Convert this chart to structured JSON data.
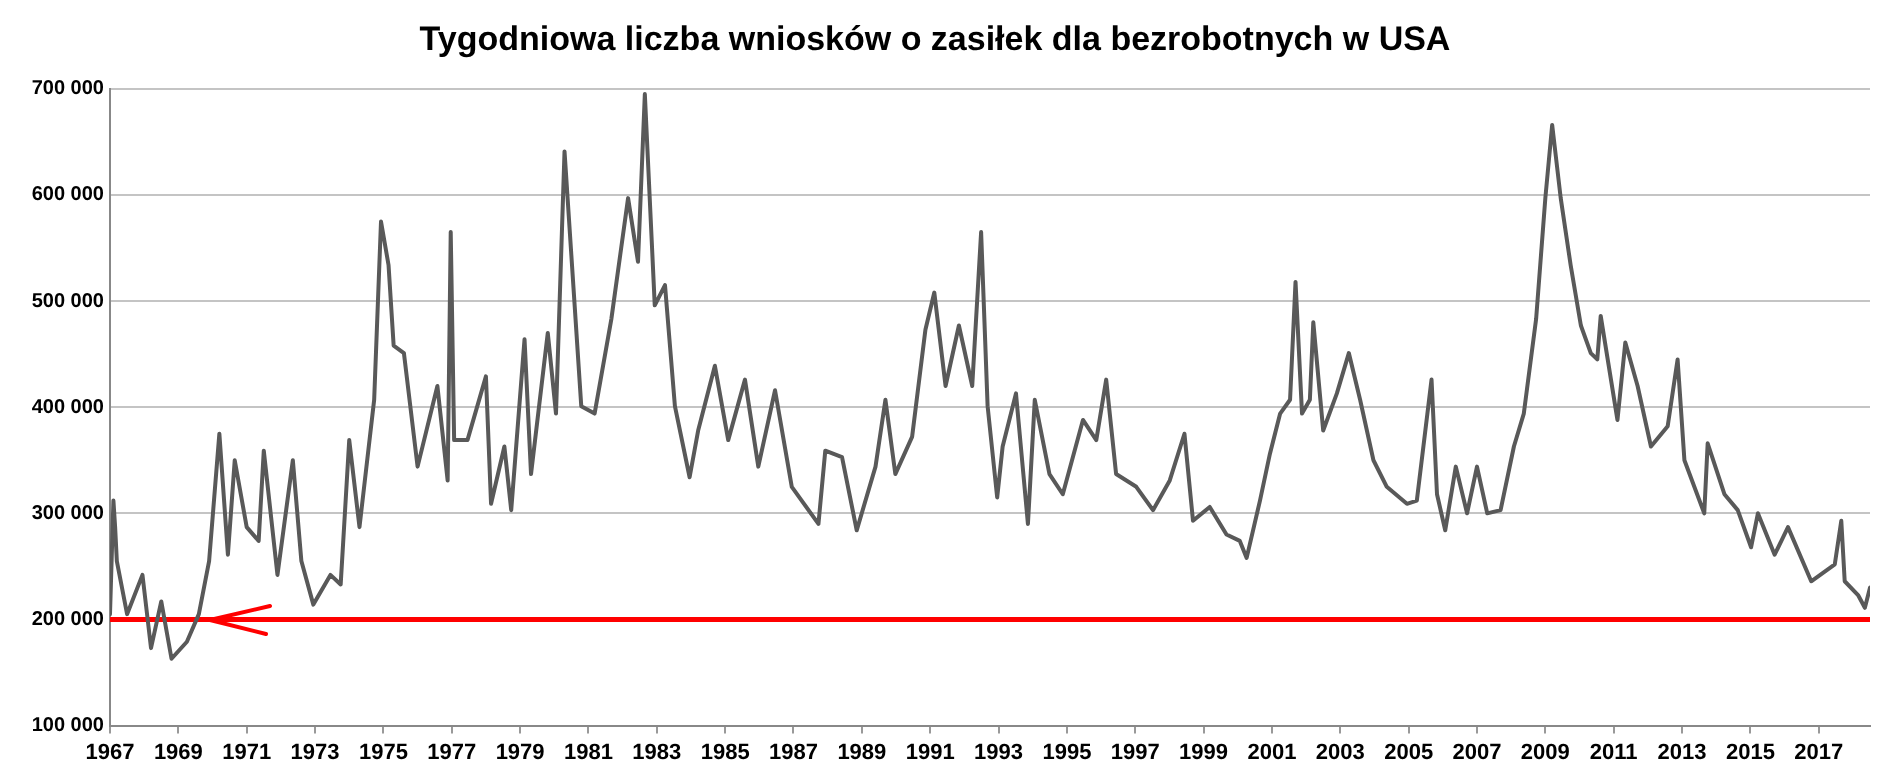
{
  "chart_data": {
    "type": "line",
    "title": "Tygodniowa liczba wniosków o zasiłek dla bezrobotnych w USA",
    "series": [
      {
        "color": "#595959",
        "x": [
          1967.0,
          1967.1,
          1967.15,
          1967.2,
          1967.5,
          1967.95,
          1968.2,
          1968.5,
          1968.8,
          1969.25,
          1969.6,
          1969.9,
          1970.2,
          1970.45,
          1970.65,
          1971.0,
          1971.35,
          1971.5,
          1971.9,
          1972.35,
          1972.6,
          1972.95,
          1973.45,
          1973.75,
          1974.0,
          1974.3,
          1974.73,
          1974.93,
          1975.15,
          1975.3,
          1975.6,
          1976.0,
          1976.58,
          1976.88,
          1976.97,
          1977.07,
          1977.46,
          1978.0,
          1978.15,
          1978.54,
          1978.74,
          1979.13,
          1979.32,
          1979.81,
          1980.05,
          1980.3,
          1980.79,
          1981.18,
          1981.67,
          1982.16,
          1982.45,
          1982.65,
          1982.94,
          1983.24,
          1983.53,
          1983.96,
          1984.21,
          1984.7,
          1985.09,
          1985.58,
          1985.97,
          1986.46,
          1986.95,
          1987.73,
          1987.93,
          1988.42,
          1988.85,
          1989.4,
          1989.69,
          1989.98,
          1990.47,
          1990.86,
          1991.12,
          1991.45,
          1991.84,
          1992.23,
          1992.49,
          1992.68,
          1992.96,
          1993.12,
          1993.51,
          1993.86,
          1994.06,
          1994.49,
          1994.88,
          1995.47,
          1995.86,
          1996.15,
          1996.44,
          1997.03,
          1997.52,
          1998.01,
          1998.44,
          1998.69,
          1999.18,
          1999.67,
          2000.06,
          2000.26,
          2000.65,
          2000.94,
          2001.24,
          2001.53,
          2001.69,
          2001.88,
          2002.11,
          2002.21,
          2002.5,
          2002.9,
          2003.25,
          2003.58,
          2003.97,
          2004.36,
          2004.95,
          2005.24,
          2005.67,
          2005.83,
          2006.07,
          2006.38,
          2006.71,
          2007.0,
          2007.3,
          2007.69,
          2008.08,
          2008.37,
          2008.73,
          2009.0,
          2009.2,
          2009.45,
          2009.74,
          2010.04,
          2010.33,
          2010.52,
          2010.62,
          2011.11,
          2011.34,
          2011.7,
          2012.09,
          2012.58,
          2012.87,
          2013.07,
          2013.65,
          2013.75,
          2014.24,
          2014.63,
          2015.02,
          2015.22,
          2015.71,
          2016.1,
          2016.78,
          2017.47,
          2017.66,
          2017.76,
          2018.15,
          2018.35,
          2018.5
        ],
        "values": [
          205000,
          312000,
          287000,
          255000,
          205000,
          242000,
          173000,
          217000,
          163000,
          179000,
          205000,
          255000,
          375000,
          261000,
          350000,
          287000,
          274000,
          359000,
          242000,
          350000,
          255000,
          214000,
          242000,
          233000,
          369000,
          287000,
          407000,
          575000,
          534000,
          458000,
          451000,
          344000,
          420000,
          331000,
          565000,
          369000,
          369000,
          429000,
          309000,
          363000,
          303000,
          464000,
          337000,
          470000,
          394000,
          641000,
          401000,
          394000,
          483000,
          597000,
          537000,
          695000,
          496000,
          515000,
          401000,
          334000,
          378000,
          439000,
          369000,
          426000,
          344000,
          416000,
          325000,
          290000,
          359000,
          353000,
          284000,
          344000,
          407000,
          337000,
          372000,
          473000,
          508000,
          420000,
          477000,
          420000,
          565000,
          401000,
          315000,
          363000,
          413000,
          290000,
          407000,
          337000,
          318000,
          388000,
          369000,
          426000,
          337000,
          325000,
          303000,
          331000,
          375000,
          293000,
          306000,
          280000,
          274000,
          258000,
          312000,
          356000,
          394000,
          407000,
          518000,
          394000,
          407000,
          480000,
          378000,
          413000,
          451000,
          407000,
          350000,
          325000,
          309000,
          312000,
          426000,
          318000,
          284000,
          344000,
          300000,
          344000,
          300000,
          303000,
          363000,
          394000,
          483000,
          597000,
          666000,
          597000,
          534000,
          477000,
          451000,
          445000,
          486000,
          388000,
          461000,
          420000,
          363000,
          382000,
          445000,
          350000,
          300000,
          366000,
          318000,
          303000,
          268000,
          300000,
          261000,
          287000,
          236000,
          252000,
          293000,
          236000,
          223000,
          211000,
          230000
        ]
      }
    ],
    "xlim": [
      1967,
      2018.5
    ],
    "xticks": [
      1967,
      1969,
      1971,
      1973,
      1975,
      1977,
      1979,
      1981,
      1983,
      1985,
      1987,
      1989,
      1991,
      1993,
      1995,
      1997,
      1999,
      2001,
      2003,
      2005,
      2007,
      2009,
      2011,
      2013,
      2015,
      2017
    ],
    "ylim": [
      100000,
      700000
    ],
    "yticks": [
      {
        "value": 100000,
        "label": "100 000"
      },
      {
        "value": 200000,
        "label": "200 000"
      },
      {
        "value": 300000,
        "label": "300 000"
      },
      {
        "value": 400000,
        "label": "400 000"
      },
      {
        "value": 500000,
        "label": "500 000"
      },
      {
        "value": 600000,
        "label": "600 000"
      },
      {
        "value": 700000,
        "label": "700 000"
      }
    ],
    "grid": "y",
    "ref_lines": [
      {
        "axis": "y",
        "value": 200000,
        "color": "#ff0000"
      }
    ]
  }
}
